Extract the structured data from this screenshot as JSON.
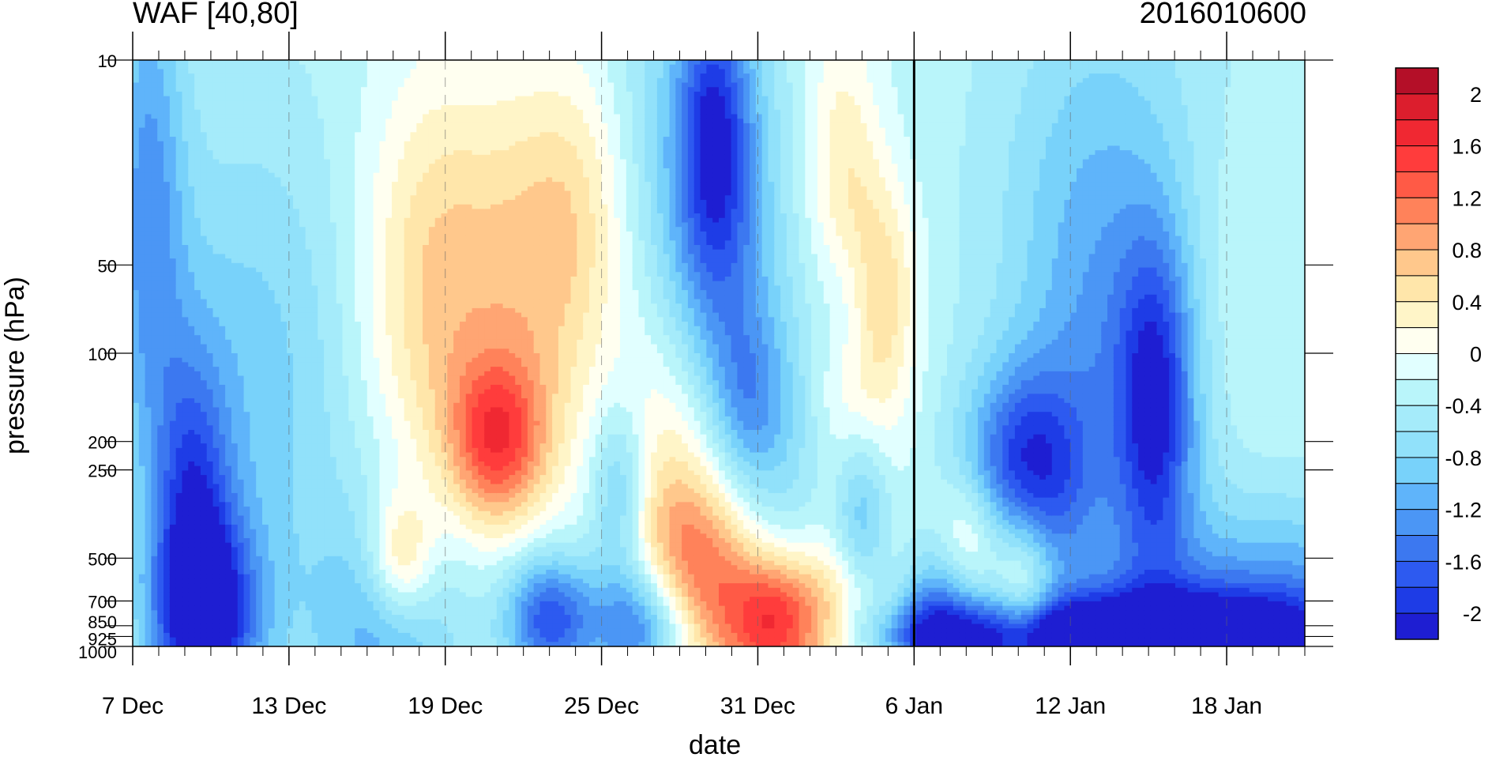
{
  "chart_data": {
    "type": "heatmap",
    "title": "WAF [40,80]",
    "subtitle": "2016010600",
    "xlabel": "date",
    "ylabel": "pressure (hPa)",
    "x_ticks": [
      "7 Dec",
      "13 Dec",
      "19 Dec",
      "25 Dec",
      "31 Dec",
      "6 Jan",
      "12 Jan",
      "18 Jan"
    ],
    "x_range": [
      "7 Dec",
      "21 Jan"
    ],
    "y_ticks": [
      10,
      50,
      100,
      200,
      250,
      500,
      700,
      850,
      925,
      1000
    ],
    "y_range": [
      1000,
      10
    ],
    "y_scale": "log",
    "colorbar": {
      "levels": [
        -2.2,
        -2.0,
        -1.8,
        -1.6,
        -1.4,
        -1.2,
        -1.0,
        -0.8,
        -0.6,
        -0.4,
        -0.2,
        0.0,
        0.2,
        0.4,
        0.6,
        0.8,
        1.0,
        1.2,
        1.4,
        1.6,
        1.8,
        2.0,
        2.2
      ],
      "colors": [
        "#1e1ed2",
        "#1e3ce6",
        "#2d5af0",
        "#3c78f0",
        "#4b96f5",
        "#5fb4fa",
        "#78d2fa",
        "#91e1fa",
        "#a5ebfa",
        "#b9f5fa",
        "#e1ffff",
        "#fffff0",
        "#fff5c8",
        "#ffe6aa",
        "#ffc88c",
        "#ffa573",
        "#ff825a",
        "#ff5a46",
        "#ff3c3c",
        "#f02832",
        "#dc1e2d",
        "#b40f28"
      ],
      "tick_labels": [
        "2",
        "1.6",
        "1.2",
        "0.8",
        "0.4",
        "0",
        "-0.4",
        "-0.8",
        "-1.2",
        "-1.6",
        "-2"
      ]
    },
    "annotations": [
      "vertical line at 6 Jan (current date)"
    ]
  }
}
